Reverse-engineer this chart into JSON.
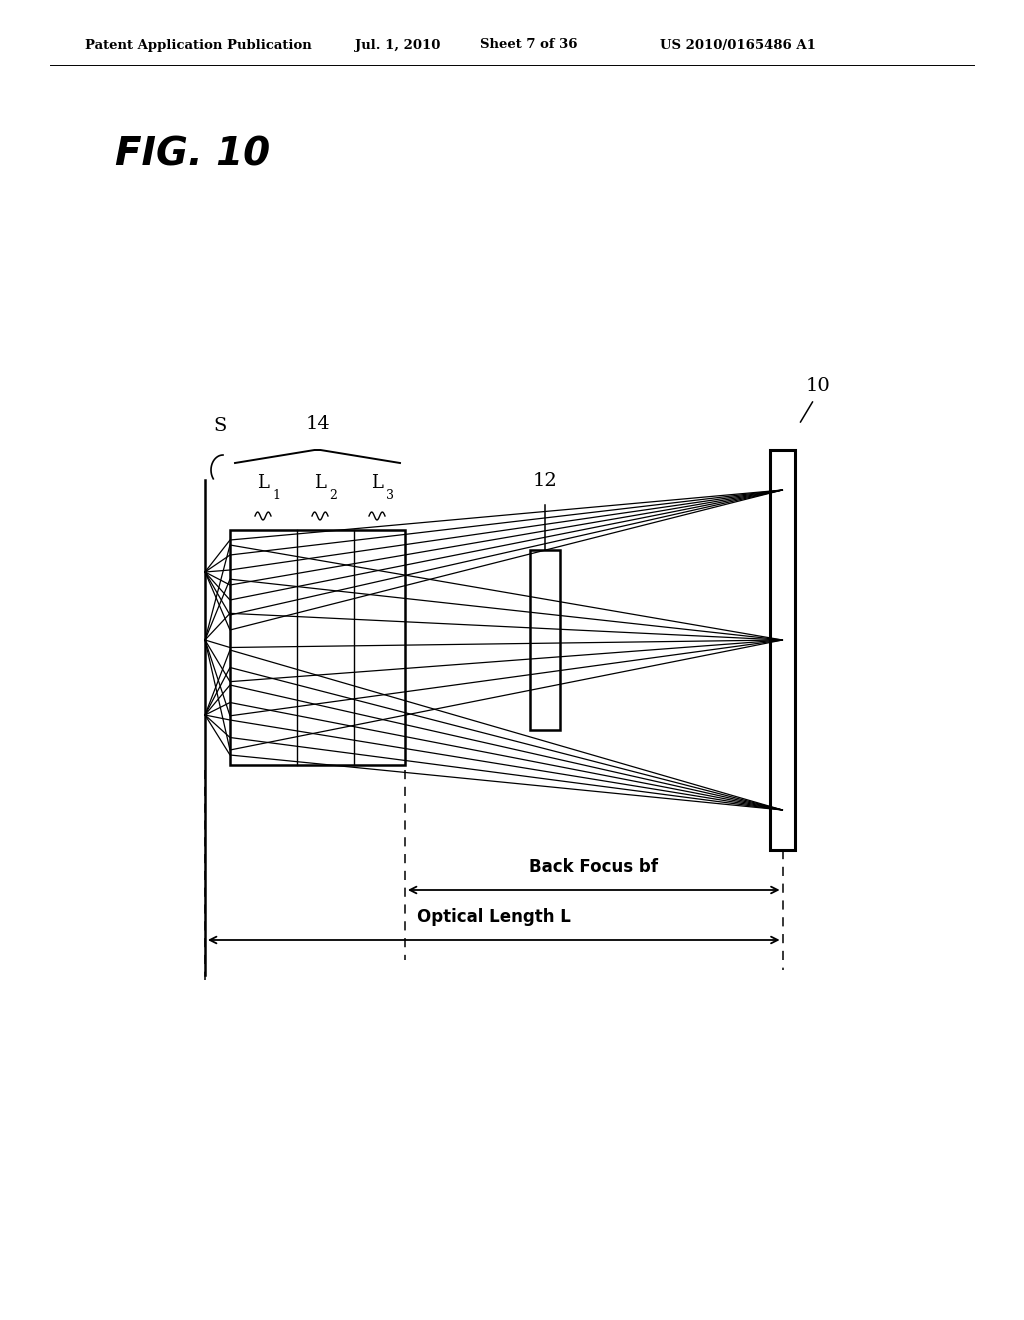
{
  "bg_color": "#ffffff",
  "header_text": "Patent Application Publication",
  "header_date": "Jul. 1, 2010",
  "header_sheet": "Sheet 7 of 36",
  "header_patent": "US 2010/0165486 A1",
  "fig_label": "FIG. 10",
  "label_10": "10",
  "label_14": "14",
  "label_12": "12",
  "label_S": "S",
  "label_L1": "L",
  "label_L2": "L",
  "label_L3": "L",
  "sub_1": "1",
  "sub_2": "2",
  "sub_3": "3",
  "back_focus_text": "Back Focus bf",
  "optical_length_text": "Optical Length L",
  "line_color": "#000000"
}
